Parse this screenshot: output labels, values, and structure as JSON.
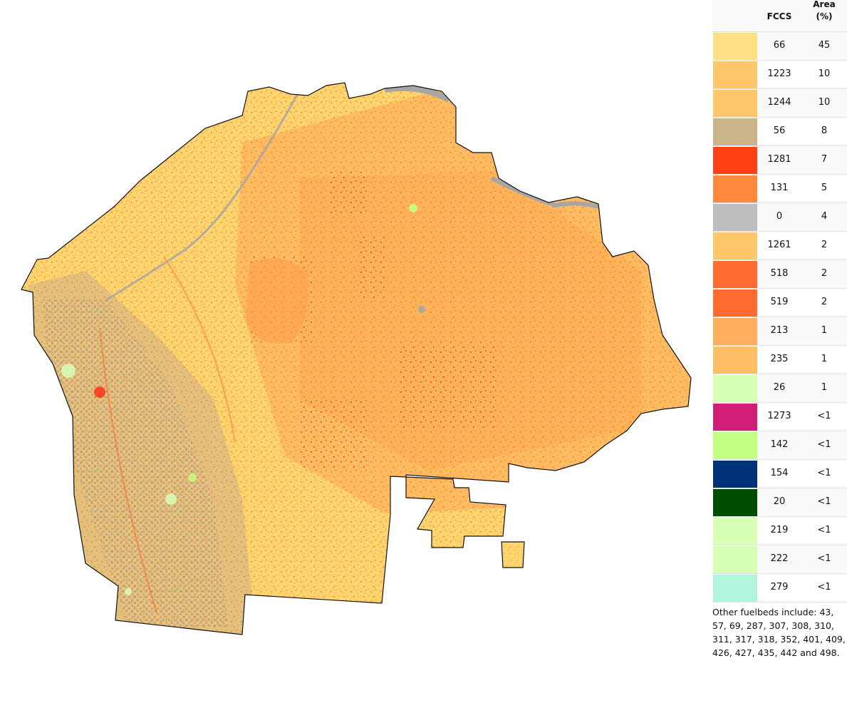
{
  "legend": {
    "header_fccs": "FCCS",
    "header_area": "Area",
    "header_area_unit": "(%)",
    "rows": [
      {
        "fccs": "66",
        "area": "45",
        "color": "#FFE185"
      },
      {
        "fccs": "1223",
        "area": "10",
        "color": "#FFC66A"
      },
      {
        "fccs": "1244",
        "area": "10",
        "color": "#FFC66A"
      },
      {
        "fccs": "56",
        "area": "8",
        "color": "#CCB48A"
      },
      {
        "fccs": "1281",
        "area": "7",
        "color": "#FF4014"
      },
      {
        "fccs": "131",
        "area": "5",
        "color": "#FF8A3D"
      },
      {
        "fccs": "0",
        "area": "4",
        "color": "#BEBEBE"
      },
      {
        "fccs": "1261",
        "area": "2",
        "color": "#FFC66A"
      },
      {
        "fccs": "518",
        "area": "2",
        "color": "#FF6A2E"
      },
      {
        "fccs": "519",
        "area": "2",
        "color": "#FF6A2E"
      },
      {
        "fccs": "213",
        "area": "1",
        "color": "#FFAE5A"
      },
      {
        "fccs": "235",
        "area": "1",
        "color": "#FFBE66"
      },
      {
        "fccs": "26",
        "area": "1",
        "color": "#D6FFB4"
      },
      {
        "fccs": "1273",
        "area": "<1",
        "color": "#D31E78"
      },
      {
        "fccs": "142",
        "area": "<1",
        "color": "#C4FF82"
      },
      {
        "fccs": "154",
        "area": "<1",
        "color": "#003278"
      },
      {
        "fccs": "20",
        "area": "<1",
        "color": "#004F00"
      },
      {
        "fccs": "219",
        "area": "<1",
        "color": "#D6FFB4"
      },
      {
        "fccs": "222",
        "area": "<1",
        "color": "#D6FFB4"
      },
      {
        "fccs": "279",
        "area": "<1",
        "color": "#B0F6DC"
      }
    ],
    "note": "Other fuelbeds include: 43, 57, 69, 287, 307, 308, 310, 311, 317, 318, 352, 401, 409, 426, 427, 435, 442 and 498."
  },
  "map": {
    "base_color": "#FFD56E",
    "outline_color": "#111111",
    "river_color": "#A6A6A6"
  }
}
